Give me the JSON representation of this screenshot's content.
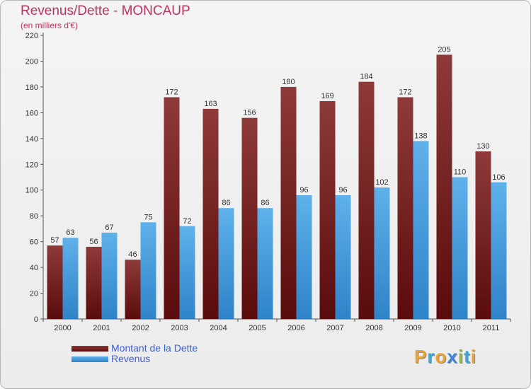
{
  "title": "Revenus/Dette - MONCAUP",
  "subtitle": "(en milliers d'€)",
  "logo": {
    "text": "Proxiti",
    "letters": [
      {
        "ch": "P",
        "color": "#e8a33a"
      },
      {
        "ch": "r",
        "color": "#3fa5d9"
      },
      {
        "ch": "o",
        "color": "#e8a33a"
      },
      {
        "ch": "x",
        "color": "#3f86d9"
      },
      {
        "ch": "i",
        "color": "#8fb83e"
      },
      {
        "ch": "t",
        "color": "#3fa5d9"
      },
      {
        "ch": "i",
        "color": "#e8a33a"
      }
    ]
  },
  "colors": {
    "debt_top": "#8f3a3a",
    "debt_bottom": "#5a0b0b",
    "revenue_top": "#5fb1ea",
    "revenue_bottom": "#2f83c8",
    "text": "#333333",
    "legend_text": "#3a5fd6"
  },
  "chart_data": {
    "type": "bar",
    "categories": [
      "2000",
      "2001",
      "2002",
      "2003",
      "2004",
      "2005",
      "2006",
      "2007",
      "2008",
      "2009",
      "2010",
      "2011"
    ],
    "series": [
      {
        "name": "Montant de la Dette",
        "values": [
          57,
          56,
          46,
          172,
          163,
          156,
          180,
          169,
          184,
          172,
          205,
          130
        ]
      },
      {
        "name": "Revenus",
        "values": [
          63,
          67,
          75,
          72,
          86,
          86,
          96,
          96,
          102,
          138,
          110,
          106
        ]
      }
    ],
    "ylim": [
      0,
      220
    ],
    "yticks": [
      0,
      20,
      40,
      60,
      80,
      100,
      120,
      140,
      160,
      180,
      200,
      220
    ],
    "grid": false,
    "legend_position": "bottom-left"
  }
}
